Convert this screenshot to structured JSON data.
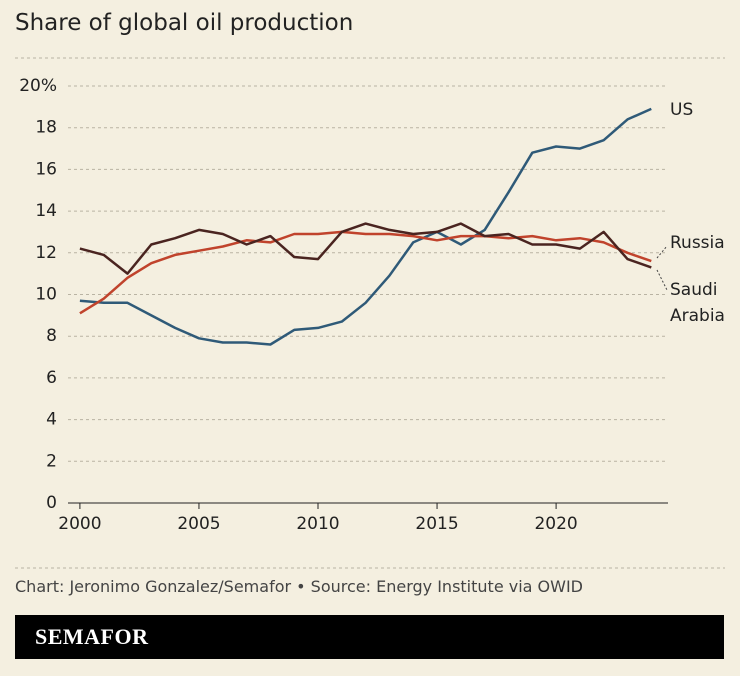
{
  "chart_data": {
    "type": "line",
    "title": "Share of global oil production",
    "source": "Chart: Jeronimo Gonzalez/Semafor • Source: Energy Institute via OWID",
    "brand": "SEMAFOR",
    "x": [
      2000,
      2001,
      2002,
      2003,
      2004,
      2005,
      2006,
      2007,
      2008,
      2009,
      2010,
      2011,
      2012,
      2013,
      2014,
      2015,
      2016,
      2017,
      2018,
      2019,
      2020,
      2021,
      2022,
      2023,
      2024
    ],
    "series": [
      {
        "name": "US",
        "color": "#2f5a78",
        "values": [
          9.7,
          9.6,
          9.6,
          9.0,
          8.4,
          7.9,
          7.7,
          7.7,
          7.6,
          8.3,
          8.4,
          8.7,
          9.6,
          10.9,
          12.5,
          13.0,
          12.4,
          13.1,
          14.9,
          16.8,
          17.1,
          17.0,
          17.4,
          18.4,
          18.9
        ]
      },
      {
        "name": "Russia",
        "color": "#c0432c",
        "values": [
          9.1,
          9.8,
          10.8,
          11.5,
          11.9,
          12.1,
          12.3,
          12.6,
          12.5,
          12.9,
          12.9,
          13.0,
          12.9,
          12.9,
          12.8,
          12.6,
          12.8,
          12.8,
          12.7,
          12.8,
          12.6,
          12.7,
          12.5,
          12.0,
          11.6
        ]
      },
      {
        "name": "Saudi Arabia",
        "color": "#4a2420",
        "values": [
          12.2,
          11.9,
          11.0,
          12.4,
          12.7,
          13.1,
          12.9,
          12.4,
          12.8,
          11.8,
          11.7,
          13.0,
          13.4,
          13.1,
          12.9,
          13.0,
          13.4,
          12.8,
          12.9,
          12.4,
          12.4,
          12.2,
          13.0,
          11.7,
          11.3
        ]
      }
    ],
    "xlim": [
      1999.5,
      2024.7
    ],
    "xticks": [
      2000,
      2005,
      2010,
      2015,
      2020
    ],
    "ylim": [
      0,
      20
    ],
    "yticks": [
      0,
      2,
      4,
      6,
      8,
      10,
      12,
      14,
      16,
      18,
      {
        "value": 20,
        "label": "20%"
      }
    ],
    "grid": true
  }
}
